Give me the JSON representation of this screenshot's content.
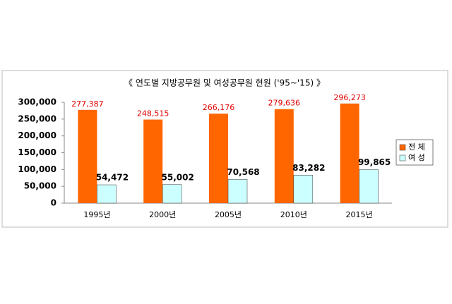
{
  "chart_data": {
    "type": "bar",
    "title": "《 연도별 지방공무원 및 여성공무원 현원 ('95~'15) 》",
    "categories": [
      "1995년",
      "2000년",
      "2005년",
      "2010년",
      "2015년"
    ],
    "series": [
      {
        "name": "전 체",
        "color": "#ff6600",
        "values": [
          277387,
          248515,
          266176,
          279636,
          296273
        ],
        "value_labels": [
          "277,387",
          "248,515",
          "266,176",
          "279,636",
          "296,273"
        ]
      },
      {
        "name": "여 성",
        "color": "#ccffff",
        "values": [
          54472,
          55002,
          70568,
          83282,
          99865
        ],
        "value_labels": [
          "54,472",
          "55,002",
          "70,568",
          "83,282",
          "99,865"
        ]
      }
    ],
    "ylim": [
      0,
      300000
    ],
    "yticks": [
      0,
      {
        "value": 50000,
        "label": "50,000"
      },
      {
        "value": 100000,
        "label": "100,000"
      },
      {
        "value": 150000,
        "label": "150,000"
      },
      {
        "value": 200000,
        "label": "200,000"
      },
      {
        "value": 250000,
        "label": "250,000"
      },
      {
        "value": 300000,
        "label": "300,000"
      }
    ],
    "legend": "right"
  }
}
